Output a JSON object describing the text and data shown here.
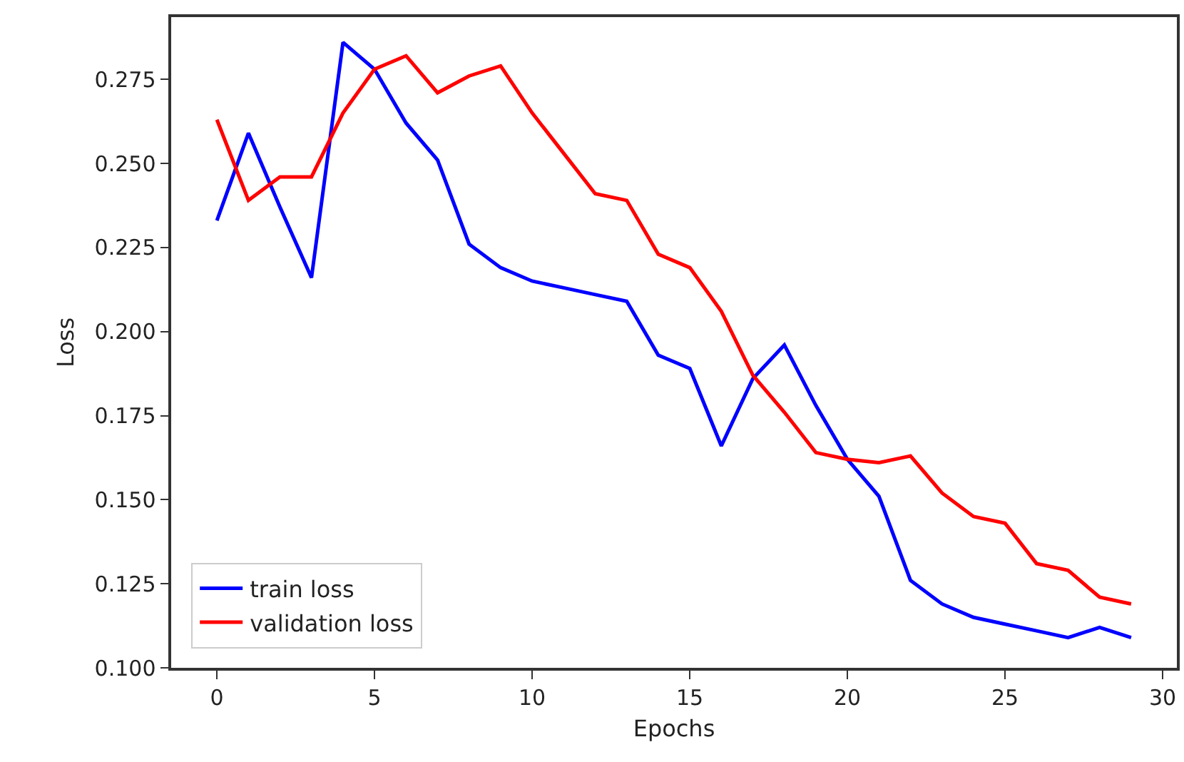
{
  "chart_data": {
    "type": "line",
    "xlabel": "Epochs",
    "ylabel": "Loss",
    "x": [
      0,
      1,
      2,
      3,
      4,
      5,
      6,
      7,
      8,
      9,
      10,
      11,
      12,
      13,
      14,
      15,
      16,
      17,
      18,
      19,
      20,
      21,
      22,
      23,
      24,
      25,
      26,
      27,
      28,
      29
    ],
    "series": [
      {
        "name": "train loss",
        "color": "#0000ff",
        "values": [
          0.233,
          0.259,
          0.237,
          0.216,
          0.286,
          0.278,
          0.262,
          0.251,
          0.226,
          0.219,
          0.215,
          0.213,
          0.211,
          0.209,
          0.193,
          0.189,
          0.166,
          0.186,
          0.196,
          0.178,
          0.162,
          0.151,
          0.126,
          0.119,
          0.115,
          0.113,
          0.111,
          0.109,
          0.112,
          0.109
        ]
      },
      {
        "name": "validation loss",
        "color": "#ff0000",
        "values": [
          0.263,
          0.239,
          0.246,
          0.246,
          0.265,
          0.278,
          0.282,
          0.271,
          0.276,
          0.279,
          0.265,
          0.253,
          0.241,
          0.239,
          0.223,
          0.219,
          0.206,
          0.187,
          0.176,
          0.164,
          0.162,
          0.161,
          0.163,
          0.152,
          0.145,
          0.143,
          0.131,
          0.129,
          0.121,
          0.119
        ]
      }
    ],
    "xlim": [
      -1.45,
      30.45
    ],
    "xticks": [
      0,
      5,
      10,
      15,
      20,
      25,
      30
    ],
    "ylim": [
      0.1,
      0.2935
    ],
    "yticks": [
      {
        "value": 0.1,
        "label": "0.100"
      },
      {
        "value": 0.125,
        "label": "0.125"
      },
      {
        "value": 0.15,
        "label": "0.150"
      },
      {
        "value": 0.175,
        "label": "0.175"
      },
      {
        "value": 0.2,
        "label": "0.200"
      },
      {
        "value": 0.225,
        "label": "0.225"
      },
      {
        "value": 0.25,
        "label": "0.250"
      },
      {
        "value": 0.275,
        "label": "0.275"
      }
    ],
    "grid": false,
    "legend": "bottom left",
    "marker": "none",
    "line_style": "solid"
  }
}
